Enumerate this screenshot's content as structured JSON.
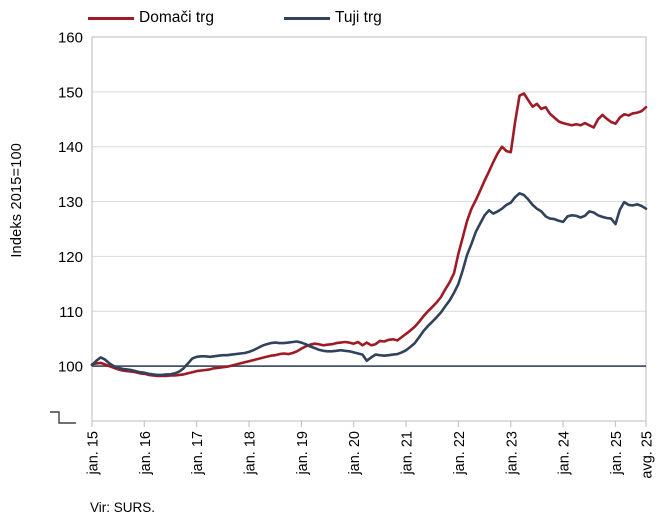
{
  "legend": {
    "items": [
      {
        "label": "Domači trg",
        "color": "#9E1B26"
      },
      {
        "label": "Tuji trg",
        "color": "#31425C"
      }
    ]
  },
  "y_axis": {
    "title": "Indeks 2015=100",
    "ticks": [
      100,
      110,
      120,
      130,
      140,
      150,
      160
    ],
    "axis_break_at_bottom": true
  },
  "x_axis": {
    "tick_labels": [
      "jan. 15",
      "jan. 16",
      "jan. 17",
      "jan. 18",
      "jan. 19",
      "jan. 20",
      "jan. 21",
      "jan. 22",
      "jan. 23",
      "jan. 24",
      "jan. 25",
      "avg. 25"
    ],
    "tick_month_index": [
      0,
      12,
      24,
      36,
      48,
      60,
      72,
      84,
      96,
      108,
      120,
      127
    ]
  },
  "source": "Vir: SURS.",
  "colors": {
    "gridline": "#D9D9D9",
    "plot_border": "#C6C6C6",
    "reference_line": "#44546A",
    "axis_break_glyph": "#404040",
    "text": "#000000"
  },
  "chart_data": {
    "type": "line",
    "title": "",
    "ylabel": "Indeks 2015=100",
    "ylim": [
      90,
      160
    ],
    "grid": "horizontal",
    "legend_position": "top",
    "x_unit": "month",
    "x_start": "jan. 2015",
    "x_end": "avg. 2025",
    "x_tick_labels": [
      "jan. 15",
      "jan. 16",
      "jan. 17",
      "jan. 18",
      "jan. 19",
      "jan. 20",
      "jan. 21",
      "jan. 22",
      "jan. 23",
      "jan. 24",
      "jan. 25",
      "avg. 25"
    ],
    "reference_line": {
      "value": 100,
      "color": "#44546A"
    },
    "series": [
      {
        "name": "Domači trg",
        "color": "#9E1B26",
        "values": [
          100.3,
          100.5,
          100.6,
          100.3,
          100.0,
          99.7,
          99.4,
          99.2,
          99.1,
          99.0,
          98.9,
          98.7,
          98.6,
          98.4,
          98.3,
          98.2,
          98.2,
          98.2,
          98.3,
          98.3,
          98.4,
          98.5,
          98.7,
          98.9,
          99.1,
          99.2,
          99.3,
          99.4,
          99.6,
          99.7,
          99.8,
          99.9,
          100.1,
          100.3,
          100.5,
          100.7,
          100.9,
          101.1,
          101.3,
          101.5,
          101.7,
          101.9,
          102.0,
          102.2,
          102.3,
          102.2,
          102.4,
          102.7,
          103.2,
          103.6,
          103.9,
          104.1,
          104.0,
          103.8,
          103.9,
          104.0,
          104.2,
          104.3,
          104.4,
          104.3,
          104.1,
          104.4,
          103.8,
          104.3,
          103.8,
          104.0,
          104.6,
          104.5,
          104.8,
          104.9,
          104.7,
          105.3,
          105.9,
          106.5,
          107.2,
          108.1,
          109.1,
          110.0,
          110.8,
          111.6,
          112.6,
          114.0,
          115.3,
          117.0,
          120.5,
          123.5,
          126.5,
          128.7,
          130.3,
          132.0,
          133.8,
          135.5,
          137.2,
          138.8,
          140.0,
          139.2,
          139.0,
          144.5,
          149.3,
          149.7,
          148.5,
          147.3,
          147.8,
          146.9,
          147.2,
          146.0,
          145.3,
          144.6,
          144.3,
          144.1,
          143.9,
          144.1,
          143.9,
          144.3,
          143.9,
          143.5,
          145.0,
          145.8,
          145.1,
          144.5,
          144.2,
          145.3,
          145.9,
          145.7,
          146.1,
          146.2,
          146.5,
          147.2
        ]
      },
      {
        "name": "Tuji trg",
        "color": "#31425C",
        "values": [
          100.2,
          101.0,
          101.6,
          101.2,
          100.5,
          100.0,
          99.7,
          99.5,
          99.4,
          99.3,
          99.1,
          98.9,
          98.8,
          98.6,
          98.5,
          98.4,
          98.4,
          98.5,
          98.5,
          98.7,
          99.0,
          99.6,
          100.5,
          101.4,
          101.7,
          101.8,
          101.8,
          101.7,
          101.8,
          101.9,
          102.0,
          102.0,
          102.1,
          102.2,
          102.3,
          102.4,
          102.6,
          102.9,
          103.3,
          103.7,
          104.0,
          104.2,
          104.3,
          104.2,
          104.2,
          104.3,
          104.4,
          104.5,
          104.3,
          104.0,
          103.6,
          103.3,
          103.0,
          102.8,
          102.7,
          102.7,
          102.8,
          102.9,
          102.8,
          102.7,
          102.5,
          102.3,
          102.1,
          101.0,
          101.6,
          102.1,
          102.0,
          101.9,
          102.0,
          102.1,
          102.2,
          102.5,
          102.9,
          103.5,
          104.2,
          105.3,
          106.4,
          107.3,
          108.1,
          108.9,
          109.8,
          110.9,
          112.0,
          113.4,
          115.0,
          117.5,
          120.3,
          122.3,
          124.5,
          126.0,
          127.5,
          128.4,
          127.8,
          128.2,
          128.7,
          129.4,
          129.8,
          130.8,
          131.5,
          131.2,
          130.4,
          129.4,
          128.7,
          128.2,
          127.3,
          126.9,
          126.8,
          126.5,
          126.3,
          127.3,
          127.5,
          127.4,
          127.1,
          127.4,
          128.2,
          128.0,
          127.5,
          127.2,
          127.0,
          126.9,
          125.9,
          128.5,
          129.9,
          129.4,
          129.3,
          129.5,
          129.2,
          128.7
        ]
      }
    ]
  }
}
